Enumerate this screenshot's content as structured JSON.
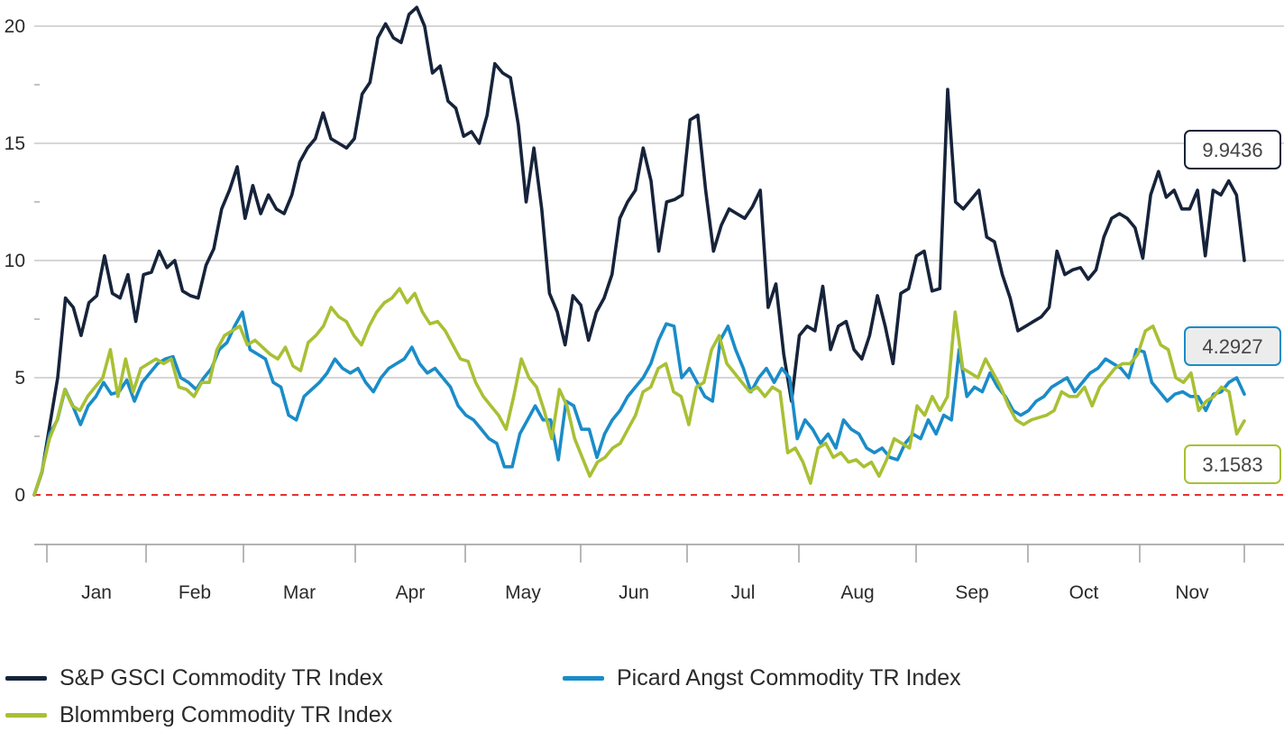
{
  "chart_data": {
    "type": "line",
    "x_tick_labels": [
      "Jan",
      "Feb",
      "Mar",
      "Apr",
      "May",
      "Jun",
      "Jul",
      "Aug",
      "Sep",
      "Oct",
      "Nov"
    ],
    "y_tick_labels": [
      "0",
      "5",
      "10",
      "15",
      "20"
    ],
    "ylim": [
      -2.2,
      20.6
    ],
    "reference_line": {
      "y": 0,
      "style": "dashed",
      "color": "#e8312f"
    },
    "grid": "horizontal",
    "legend_position": "bottom",
    "series": [
      {
        "name": "S&P GSCI Commodity TR Index",
        "color": "#16233a",
        "end_label": "9.9436",
        "values": [
          0,
          1,
          3,
          5,
          8.4,
          8,
          6.8,
          8.2,
          8.5,
          10.2,
          8.6,
          8.4,
          9.4,
          7.4,
          9.4,
          9.5,
          10.4,
          9.7,
          10,
          8.7,
          8.5,
          8.4,
          9.8,
          10.5,
          12.2,
          13,
          14,
          11.8,
          13.2,
          12,
          12.8,
          12.2,
          12,
          12.8,
          14.2,
          14.8,
          15.2,
          16.3,
          15.2,
          15,
          14.8,
          15.2,
          17.1,
          17.6,
          19.5,
          20.1,
          19.5,
          19.3,
          20.5,
          20.8,
          20,
          18,
          18.3,
          16.8,
          16.5,
          15.3,
          15.5,
          15,
          16.2,
          18.4,
          18,
          17.8,
          15.8,
          12.5,
          14.8,
          12.2,
          8.6,
          7.8,
          6.4,
          8.5,
          8.1,
          6.6,
          7.8,
          8.4,
          9.4,
          11.8,
          12.5,
          13,
          14.8,
          13.4,
          10.4,
          12.5,
          12.6,
          12.8,
          16,
          16.2,
          13,
          10.4,
          11.5,
          12.2,
          12,
          11.8,
          12.3,
          13,
          8,
          9,
          6,
          4,
          6.8,
          7.2,
          7,
          8.9,
          6.2,
          7.2,
          7.4,
          6.2,
          5.8,
          6.8,
          8.5,
          7.2,
          5.6,
          8.6,
          8.8,
          10.2,
          10.4,
          8.7,
          8.8,
          17.3,
          12.5,
          12.2,
          12.6,
          13,
          11,
          10.8,
          9.4,
          8.4,
          7,
          7.2,
          7.4,
          7.6,
          8,
          10.4,
          9.4,
          9.6,
          9.7,
          9.2,
          9.6,
          11,
          11.8,
          12,
          11.8,
          11.4,
          10.1,
          12.8,
          13.8,
          12.7,
          13,
          12.2,
          12.2,
          13,
          10.2,
          13,
          12.8,
          13.4,
          12.8,
          10
        ]
      },
      {
        "name": "Picard Angst Commodity TR Index",
        "color": "#1a8cc8",
        "end_label": "4.2927",
        "values": [
          0,
          1,
          2.6,
          3.2,
          4.5,
          3.8,
          3,
          3.8,
          4.2,
          4.8,
          4.3,
          4.4,
          4.9,
          4,
          4.8,
          5.2,
          5.6,
          5.8,
          5.9,
          5,
          4.8,
          4.5,
          5,
          5.4,
          6.2,
          6.5,
          7.2,
          7.8,
          6.2,
          6,
          5.8,
          4.8,
          4.6,
          3.4,
          3.2,
          4.2,
          4.5,
          4.8,
          5.2,
          5.8,
          5.4,
          5.2,
          5.4,
          4.8,
          4.4,
          5,
          5.4,
          5.6,
          5.8,
          6.3,
          5.6,
          5.2,
          5.4,
          5,
          4.6,
          3.8,
          3.4,
          3.2,
          2.8,
          2.4,
          2.2,
          1.2,
          1.2,
          2.6,
          3.2,
          3.8,
          3.2,
          3.2,
          1.5,
          4,
          3.8,
          2.8,
          2.8,
          1.6,
          2.6,
          3.2,
          3.6,
          4.2,
          4.6,
          5,
          5.6,
          6.6,
          7.3,
          7.2,
          5,
          5.4,
          4.8,
          4.2,
          4,
          6.6,
          7.2,
          6.2,
          5.4,
          4.4,
          5,
          5.4,
          4.8,
          5.4,
          5,
          2.4,
          3.2,
          2.8,
          2.2,
          2.6,
          2,
          3.2,
          2.8,
          2.6,
          2,
          1.8,
          2,
          1.6,
          1.5,
          2.2,
          2.6,
          2.4,
          3.2,
          2.6,
          3.4,
          3.2,
          6.2,
          4.2,
          4.6,
          4.4,
          5.2,
          4.6,
          4.2,
          3.6,
          3.4,
          3.6,
          4,
          4.2,
          4.6,
          4.8,
          5,
          4.4,
          4.8,
          5.2,
          5.4,
          5.8,
          5.6,
          5.4,
          5,
          6.2,
          6.1,
          4.8,
          4.4,
          4,
          4.3,
          4.4,
          4.2,
          4.2,
          3.6,
          4.3,
          4.4,
          4.8,
          5,
          4.3
        ]
      },
      {
        "name": "Blommberg Commodity TR Index",
        "color": "#a8c034",
        "end_label": "3.1583",
        "values": [
          0,
          1,
          2.4,
          3.2,
          4.5,
          3.8,
          3.6,
          4.2,
          4.6,
          5,
          6.2,
          4.2,
          5.8,
          4.4,
          5.4,
          5.6,
          5.8,
          5.6,
          5.8,
          4.6,
          4.5,
          4.2,
          4.8,
          4.8,
          6.2,
          6.8,
          7,
          7.2,
          6.4,
          6.6,
          6.3,
          6,
          5.8,
          6.3,
          5.5,
          5.3,
          6.5,
          6.8,
          7.2,
          8,
          7.6,
          7.4,
          6.8,
          6.4,
          7.2,
          7.8,
          8.2,
          8.4,
          8.8,
          8.2,
          8.6,
          7.8,
          7.3,
          7.4,
          7,
          6.4,
          5.8,
          5.7,
          4.8,
          4.2,
          3.8,
          3.4,
          2.8,
          4.2,
          5.8,
          5,
          4.6,
          3.6,
          2.4,
          4.5,
          3.8,
          2.4,
          1.6,
          0.8,
          1.4,
          1.6,
          2,
          2.2,
          2.8,
          3.4,
          4.4,
          4.6,
          5.4,
          5.6,
          4.4,
          4.2,
          3,
          4.6,
          4.8,
          6.2,
          6.8,
          5.6,
          5.2,
          4.8,
          4.4,
          4.6,
          4.2,
          4.6,
          4.4,
          1.8,
          2,
          1.4,
          0.5,
          2,
          2.2,
          1.6,
          1.8,
          1.4,
          1.5,
          1.2,
          1.4,
          0.8,
          1.5,
          2.4,
          2.2,
          2,
          3.8,
          3.4,
          4.2,
          3.6,
          4.2,
          7.8,
          5.4,
          5.2,
          5,
          5.8,
          5.2,
          4.6,
          3.8,
          3.2,
          3,
          3.2,
          3.3,
          3.4,
          3.6,
          4.4,
          4.2,
          4.2,
          4.6,
          3.8,
          4.6,
          5,
          5.4,
          5.6,
          5.6,
          6,
          7,
          7.2,
          6.4,
          6.2,
          5,
          4.8,
          5.2,
          3.6,
          4,
          4.2,
          4.6,
          4.4,
          2.6,
          3.1583
        ]
      }
    ]
  }
}
